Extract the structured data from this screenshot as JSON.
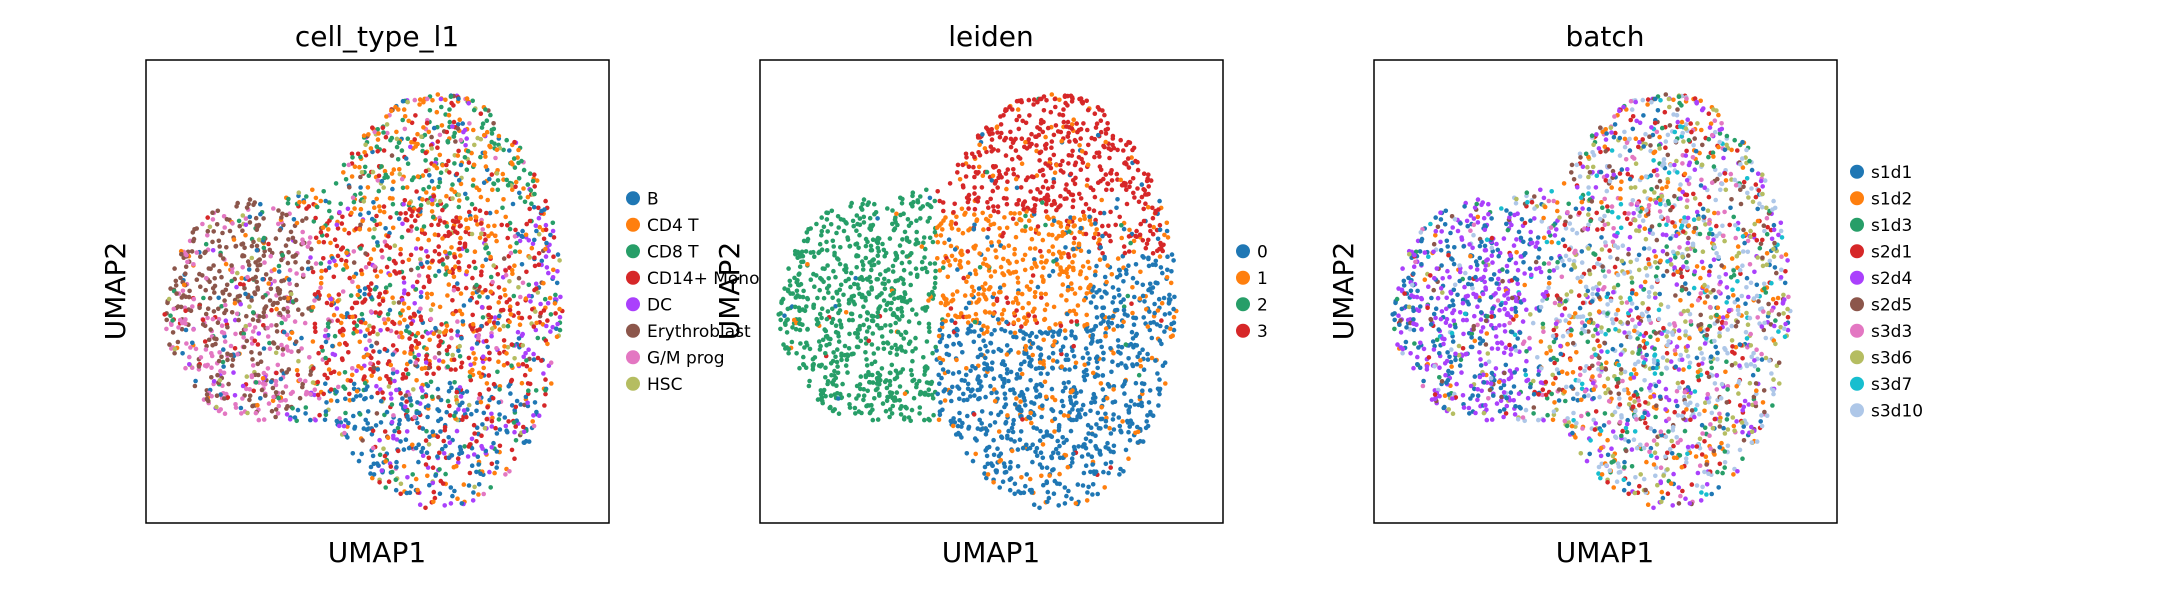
{
  "chart_data": [
    {
      "type": "scatter",
      "title": "cell_type_l1",
      "xlabel": "UMAP1",
      "ylabel": "UMAP2",
      "ticks": "none",
      "legend": "right",
      "series": [
        {
          "name": "B",
          "color": "#1f77b4"
        },
        {
          "name": "CD4 T",
          "color": "#ff7f0e"
        },
        {
          "name": "CD8 T",
          "color": "#279e68"
        },
        {
          "name": "CD14+ Mono",
          "color": "#d62728"
        },
        {
          "name": "DC",
          "color": "#aa40fc"
        },
        {
          "name": "Erythroblast",
          "color": "#8c564b"
        },
        {
          "name": "G/M prog",
          "color": "#e377c2"
        },
        {
          "name": "HSC",
          "color": "#b5bd61"
        }
      ]
    },
    {
      "type": "scatter",
      "title": "leiden",
      "xlabel": "UMAP1",
      "ylabel": "UMAP2",
      "ticks": "none",
      "legend": "right",
      "series": [
        {
          "name": "0",
          "color": "#1f77b4"
        },
        {
          "name": "1",
          "color": "#ff7f0e"
        },
        {
          "name": "2",
          "color": "#279e68"
        },
        {
          "name": "3",
          "color": "#d62728"
        }
      ]
    },
    {
      "type": "scatter",
      "title": "batch",
      "xlabel": "UMAP1",
      "ylabel": "UMAP2",
      "ticks": "none",
      "legend": "right",
      "series": [
        {
          "name": "s1d1",
          "color": "#1f77b4"
        },
        {
          "name": "s1d2",
          "color": "#ff7f0e"
        },
        {
          "name": "s1d3",
          "color": "#279e68"
        },
        {
          "name": "s2d1",
          "color": "#d62728"
        },
        {
          "name": "s2d4",
          "color": "#aa40fc"
        },
        {
          "name": "s2d5",
          "color": "#8c564b"
        },
        {
          "name": "s3d3",
          "color": "#e377c2"
        },
        {
          "name": "s3d6",
          "color": "#b5bd61"
        },
        {
          "name": "s3d7",
          "color": "#17becf"
        },
        {
          "name": "s3d10",
          "color": "#aec7e8"
        }
      ]
    }
  ]
}
